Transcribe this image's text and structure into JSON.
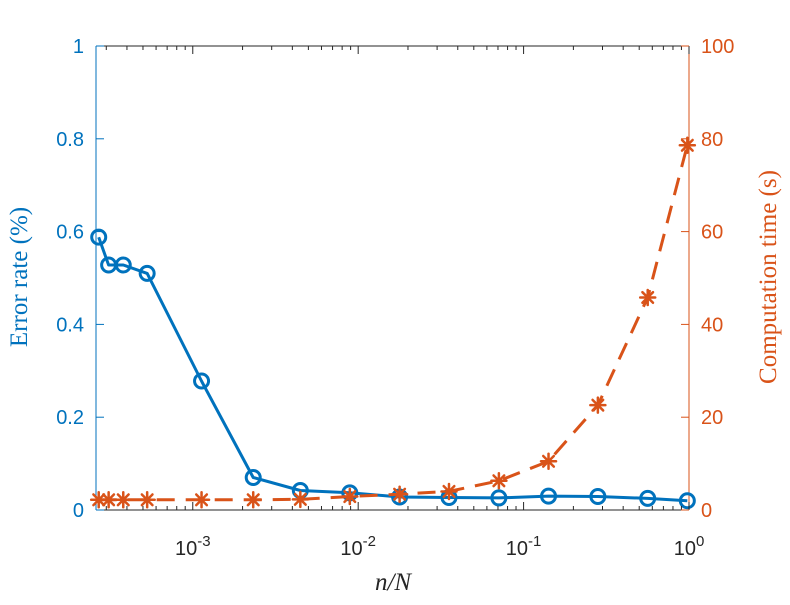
{
  "chart_data": {
    "type": "line",
    "xlabel": "n/N",
    "x_scale": "log",
    "xlim": [
      0.00026,
      1
    ],
    "x_ticks": [
      {
        "value": 0.001,
        "base": "10",
        "exp": "-3"
      },
      {
        "value": 0.01,
        "base": "10",
        "exp": "-2"
      },
      {
        "value": 0.1,
        "base": "10",
        "exp": "-1"
      },
      {
        "value": 1,
        "base": "10",
        "exp": "0"
      }
    ],
    "y_left": {
      "label": "Error rate (%)",
      "lim": [
        0,
        1
      ],
      "ticks": [
        0,
        0.2,
        0.4,
        0.6,
        0.8,
        1
      ],
      "tick_labels": [
        "0",
        "0.2",
        "0.4",
        "0.6",
        "0.8",
        "1"
      ],
      "color": "#0072bd"
    },
    "y_right": {
      "label": "Computation time (s)",
      "lim": [
        0,
        100
      ],
      "ticks": [
        0,
        20,
        40,
        60,
        80,
        100
      ],
      "tick_labels": [
        "0",
        "20",
        "40",
        "60",
        "80",
        "100"
      ],
      "color": "#d95319"
    },
    "x": [
      0.00027,
      0.00031,
      0.00038,
      0.00053,
      0.00113,
      0.00232,
      0.00447,
      0.0089,
      0.0178,
      0.0354,
      0.0709,
      0.1415,
      0.2812,
      0.5628,
      0.977
    ],
    "series": [
      {
        "axis": "left",
        "line_style": "solid",
        "marker": "circle",
        "color": "#0072bd",
        "values": [
          0.588,
          0.528,
          0.528,
          0.51,
          0.278,
          0.07,
          0.042,
          0.037,
          0.028,
          0.027,
          0.026,
          0.03,
          0.029,
          0.025,
          0.02
        ]
      },
      {
        "axis": "right",
        "line_style": "dashed",
        "marker": "asterisk",
        "color": "#d95319",
        "values": [
          2.2,
          2.2,
          2.2,
          2.2,
          2.2,
          2.2,
          2.3,
          2.9,
          3.4,
          4.0,
          6.3,
          10.5,
          22.6,
          45.8,
          78.6
        ]
      }
    ],
    "grid": false,
    "legend": "none"
  }
}
